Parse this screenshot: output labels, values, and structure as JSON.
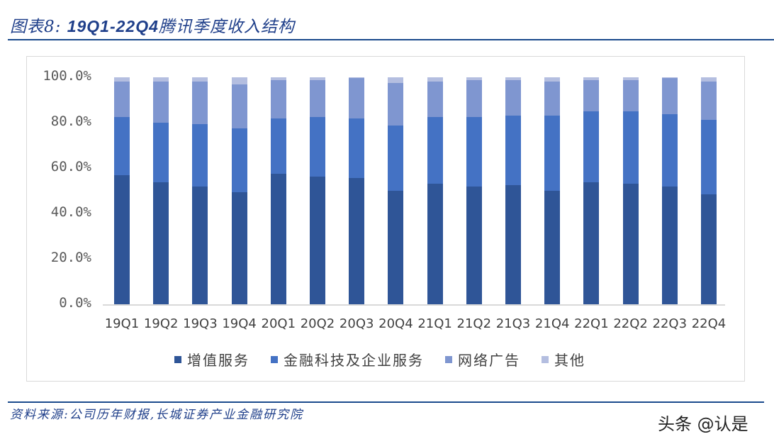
{
  "header": {
    "title_prefix": "图表8:",
    "title_range": "19Q1-22Q4",
    "title_suffix": "腾讯季度收入结构"
  },
  "footer": {
    "source": "资料来源:公司历年财报,长城证券产业金融研究院",
    "watermark": "头条 @认是"
  },
  "colors": {
    "rule": "#1b4a8c",
    "title": "#1f3f8a",
    "vas": "#2f5597",
    "fintech": "#4472c4",
    "ads": "#7f96d0",
    "others": "#b4bee0"
  },
  "chart_data": {
    "type": "bar",
    "stacked": true,
    "percent": true,
    "title": "19Q1-22Q4腾讯季度收入结构",
    "xlabel": "",
    "ylabel": "",
    "ylim": [
      0,
      100
    ],
    "yticks": [
      "0.0%",
      "20.0%",
      "40.0%",
      "60.0%",
      "80.0%",
      "100.0%"
    ],
    "grid": false,
    "legend_position": "bottom",
    "categories": [
      "19Q1",
      "19Q2",
      "19Q3",
      "19Q4",
      "20Q1",
      "20Q2",
      "20Q3",
      "20Q4",
      "21Q1",
      "21Q2",
      "21Q3",
      "21Q4",
      "22Q1",
      "22Q2",
      "22Q3",
      "22Q4"
    ],
    "series": [
      {
        "name": "增值服务",
        "color": "#2f5597",
        "values": [
          57.0,
          53.6,
          52.0,
          49.5,
          57.5,
          56.1,
          55.6,
          49.9,
          53.1,
          52.0,
          52.5,
          50.0,
          53.8,
          53.1,
          52.0,
          48.3
        ]
      },
      {
        "name": "金融科技及企业服务",
        "color": "#4472c4",
        "values": [
          25.5,
          26.5,
          27.4,
          28.0,
          24.5,
          26.4,
          26.4,
          28.9,
          29.4,
          30.5,
          30.7,
          33.2,
          31.3,
          32.0,
          31.8,
          33.0
        ]
      },
      {
        "name": "网络广告",
        "color": "#7f96d0",
        "values": [
          15.6,
          18.0,
          18.7,
          19.4,
          16.8,
          16.3,
          17.7,
          18.8,
          15.6,
          16.3,
          15.6,
          14.9,
          13.7,
          13.7,
          15.8,
          16.8
        ]
      },
      {
        "name": "其他",
        "color": "#b4bee0",
        "values": [
          1.9,
          1.9,
          1.9,
          3.1,
          1.2,
          1.2,
          0.3,
          2.4,
          1.9,
          1.2,
          1.2,
          1.9,
          1.2,
          1.2,
          0.4,
          1.9
        ]
      }
    ]
  }
}
